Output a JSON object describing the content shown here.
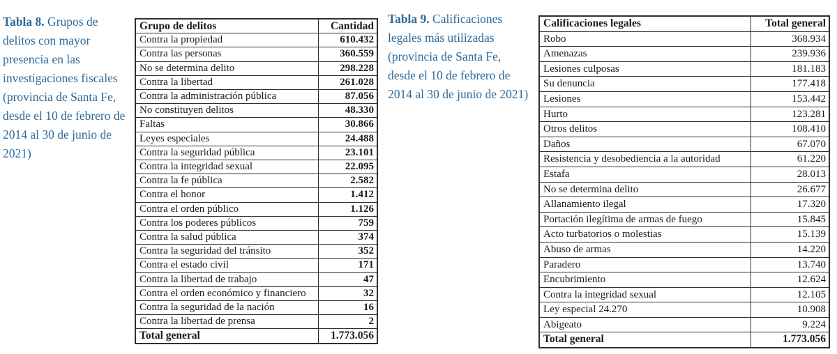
{
  "theme": {
    "background": "#ffffff",
    "caption_color": "#2e6a99",
    "border_color": "#2f2f2f",
    "text_color": "#1b1b1b"
  },
  "captions": {
    "table8": {
      "label": "Tabla 8.",
      "text": " Grupos de delitos con mayor presencia en las investigaciones fiscales (provincia de Santa Fe, desde el 10 de febrero de 2014 al 30 de junio de 2021)"
    },
    "table9": {
      "label": "Tabla 9.",
      "text": " Calificaciones legales más utilizadas (provincia de Santa Fe, desde el 10 de febrero de 2014 al 30 de junio de 2021)"
    }
  },
  "table8": {
    "headers": [
      "Grupo de delitos",
      "Cantidad"
    ],
    "rows": [
      [
        "Contra la propiedad",
        "610.432"
      ],
      [
        "Contra las personas",
        "360.559"
      ],
      [
        "No se determina delito",
        "298.228"
      ],
      [
        "Contra la libertad",
        "261.028"
      ],
      [
        "Contra la administración pública",
        "87.056"
      ],
      [
        "No constituyen delitos",
        "48.330"
      ],
      [
        "Faltas",
        "30.866"
      ],
      [
        "Leyes especiales",
        "24.488"
      ],
      [
        "Contra la seguridad pública",
        "23.101"
      ],
      [
        "Contra la integridad sexual",
        "22.095"
      ],
      [
        "Contra la fe pública",
        "2.582"
      ],
      [
        "Contra el honor",
        "1.412"
      ],
      [
        "Contra el orden público",
        "1.126"
      ],
      [
        "Contra los poderes públicos",
        "759"
      ],
      [
        "Contra la salud pública",
        "374"
      ],
      [
        "Contra la seguridad del tránsito",
        "352"
      ],
      [
        "Contra el estado civil",
        "171"
      ],
      [
        "Contra la libertad de trabajo",
        "47"
      ],
      [
        "Contra el orden económico y financiero",
        "32"
      ],
      [
        "Contra la seguridad de la nación",
        "16"
      ],
      [
        "Contra la libertad de prensa",
        "2"
      ]
    ],
    "total": {
      "label": "Total general",
      "value": "1.773.056"
    }
  },
  "table9": {
    "headers": [
      "Calificaciones legales",
      "Total general"
    ],
    "rows": [
      [
        "Robo",
        "368.934"
      ],
      [
        "Amenazas",
        "239.936"
      ],
      [
        "Lesiones culposas",
        "181.183"
      ],
      [
        "Su denuncia",
        "177.418"
      ],
      [
        "Lesiones",
        "153.442"
      ],
      [
        "Hurto",
        "123.281"
      ],
      [
        "Otros delitos",
        "108.410"
      ],
      [
        "Daños",
        "67.070"
      ],
      [
        "Resistencia y desobediencia a la autoridad",
        "61.220"
      ],
      [
        "Estafa",
        "28.013"
      ],
      [
        "No se determina delito",
        "26.677"
      ],
      [
        "Allanamiento ilegal",
        "17.320"
      ],
      [
        "Portación ilegítima de armas de fuego",
        "15.845"
      ],
      [
        "Acto turbatorios o molestias",
        "15.139"
      ],
      [
        "Abuso de armas",
        "14.220"
      ],
      [
        "Paradero",
        "13.740"
      ],
      [
        "Encubrimiento",
        "12.624"
      ],
      [
        "Contra la integridad sexual",
        "12.105"
      ],
      [
        "Ley especial 24.270",
        "10.908"
      ],
      [
        "Abigeato",
        "9.224"
      ]
    ],
    "total": {
      "label": "Total general",
      "value": "1.773.056"
    }
  }
}
